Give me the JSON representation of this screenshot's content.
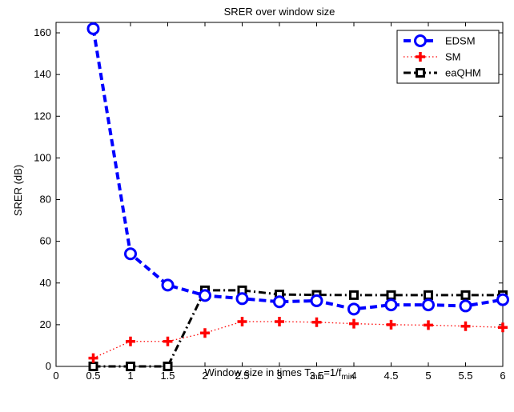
{
  "chart_data": {
    "type": "line",
    "title": "SRER over window size",
    "xlabel_parts": [
      "Window size in times T",
      "min",
      "=1/f",
      "min"
    ],
    "ylabel": "SRER (dB)",
    "xlim": [
      0,
      6
    ],
    "ylim": [
      0,
      165
    ],
    "xticks": [
      0,
      0.5,
      1,
      1.5,
      2,
      2.5,
      3,
      3.5,
      4,
      4.5,
      5,
      5.5,
      6
    ],
    "xtick_labels": [
      "0",
      "0.5",
      "1",
      "1.5",
      "2",
      "2.5",
      "3",
      "3.5",
      "4",
      "4.5",
      "5",
      "5.5",
      "6"
    ],
    "yticks": [
      0,
      20,
      40,
      60,
      80,
      100,
      120,
      140,
      160
    ],
    "ytick_labels": [
      "0",
      "20",
      "40",
      "60",
      "80",
      "100",
      "120",
      "140",
      "160"
    ],
    "grid": false,
    "legend_position": "top-right",
    "x": [
      0.5,
      1,
      1.5,
      2,
      2.5,
      3,
      3.5,
      4,
      4.5,
      5,
      5.5,
      6
    ],
    "series": [
      {
        "name": "EDSM",
        "color": "#0000ff",
        "line_style": "dashed",
        "marker": "circle",
        "values": [
          162,
          54,
          39,
          34,
          32.5,
          31,
          31.5,
          27.5,
          29.5,
          29.5,
          29,
          32
        ]
      },
      {
        "name": "SM",
        "color": "#ff0000",
        "line_style": "dotted",
        "marker": "plus",
        "values": [
          4,
          12,
          12,
          16,
          21.5,
          21.5,
          21.2,
          20.5,
          20,
          19.8,
          19.3,
          18.7
        ]
      },
      {
        "name": "eaQHM",
        "color": "#000000",
        "line_style": "dash-dot",
        "marker": "square",
        "values": [
          0,
          0,
          0,
          36.5,
          36.5,
          34.5,
          34.3,
          34.2,
          34.2,
          34.2,
          34.2,
          34.2
        ]
      }
    ]
  }
}
